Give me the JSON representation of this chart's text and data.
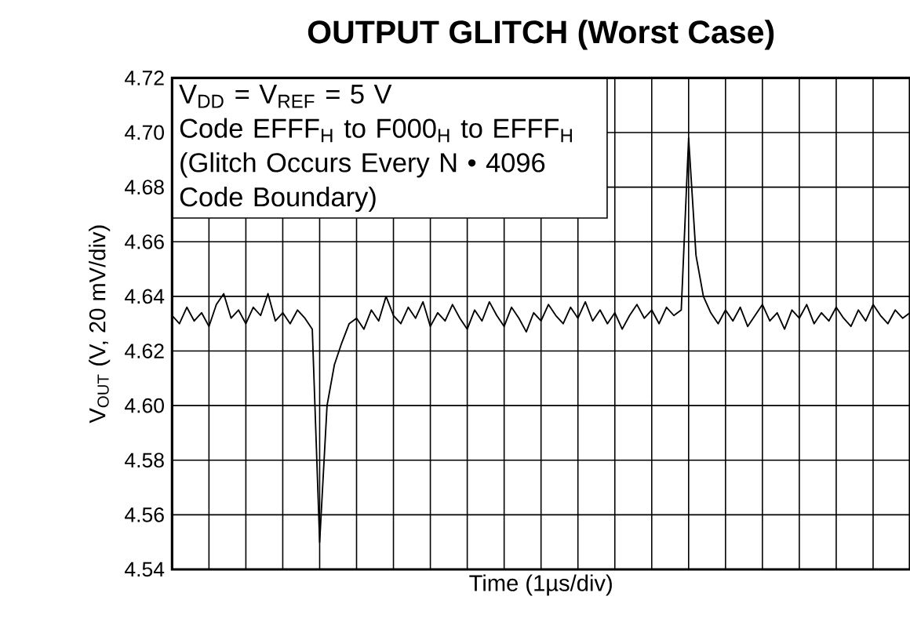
{
  "chart_data": {
    "type": "line",
    "title": "OUTPUT GLITCH (Worst Case)",
    "xlabel": "Time (1µs/div)",
    "ylabel": "V$_{OUT}$ (V, 20 mV/div)",
    "annotations": [
      "V$_{DD}$ = V$_{REF}$ = 5 V",
      "Code EFFF$_{H}$ to F000$_{H}$ to EFFF$_{H}$",
      "(Glitch Occurs Every N • 4096 Code Boundary)"
    ],
    "categories": [
      null,
      null,
      null,
      null,
      null,
      null,
      null,
      null,
      null,
      null,
      null,
      null,
      null,
      null,
      null,
      null,
      null,
      null,
      null,
      null,
      null,
      null,
      null,
      null,
      null,
      null,
      null,
      null,
      null,
      null,
      null,
      null,
      null,
      null,
      null,
      null,
      null,
      null,
      null,
      null,
      null,
      null,
      null,
      null,
      null,
      null,
      null,
      null,
      null,
      null,
      null,
      null,
      null,
      null,
      null,
      null,
      null,
      null,
      null,
      null,
      null,
      null,
      null,
      null,
      null,
      null,
      null,
      null,
      null,
      null,
      null,
      null,
      null,
      null,
      null,
      null,
      null,
      null,
      null,
      null,
      null,
      null,
      null,
      null,
      null,
      null,
      null,
      null,
      null,
      null,
      null,
      null,
      null,
      null,
      null,
      null,
      null,
      null,
      null,
      null,
      null
    ],
    "values": [
      4.633,
      4.63,
      4.636,
      4.631,
      4.634,
      4.629,
      4.637,
      4.641,
      4.632,
      4.635,
      4.63,
      4.636,
      4.633,
      4.641,
      4.631,
      4.634,
      4.63,
      4.635,
      4.632,
      4.628,
      4.55,
      4.6,
      4.615,
      4.623,
      4.63,
      4.632,
      4.628,
      4.635,
      4.631,
      4.64,
      4.633,
      4.63,
      4.636,
      4.632,
      4.638,
      4.629,
      4.634,
      4.631,
      4.637,
      4.632,
      4.628,
      4.635,
      4.631,
      4.638,
      4.633,
      4.629,
      4.636,
      4.632,
      4.627,
      4.634,
      4.631,
      4.637,
      4.633,
      4.63,
      4.636,
      4.632,
      4.638,
      4.631,
      4.635,
      4.63,
      4.634,
      4.628,
      4.633,
      4.637,
      4.632,
      4.635,
      4.63,
      4.636,
      4.633,
      4.635,
      4.698,
      4.655,
      4.64,
      4.634,
      4.63,
      4.635,
      4.631,
      4.636,
      4.629,
      4.633,
      4.637,
      4.631,
      4.634,
      4.628,
      4.635,
      4.632,
      4.637,
      4.63,
      4.634,
      4.631,
      4.636,
      4.632,
      4.629,
      4.635,
      4.631,
      4.637,
      4.633,
      4.63,
      4.635,
      4.632,
      4.634
    ],
    "color": "#000000",
    "ylim": [
      4.54,
      4.72
    ],
    "yticks": [
      {
        "value": 4.54,
        "label": "4.54"
      },
      {
        "value": 4.56,
        "label": "4.56"
      },
      {
        "value": 4.58,
        "label": "4.58"
      },
      {
        "value": 4.6,
        "label": "4.60"
      },
      {
        "value": 4.62,
        "label": "4.62"
      },
      {
        "value": 4.64,
        "label": "4.64"
      },
      {
        "value": 4.66,
        "label": "4.66"
      },
      {
        "value": 4.68,
        "label": "4.68"
      },
      {
        "value": 4.7,
        "label": "4.70"
      },
      {
        "value": 4.72,
        "label": "4.72"
      }
    ],
    "tick_labels": "y",
    "grid": true,
    "marker": "none",
    "line_style": "solid"
  }
}
